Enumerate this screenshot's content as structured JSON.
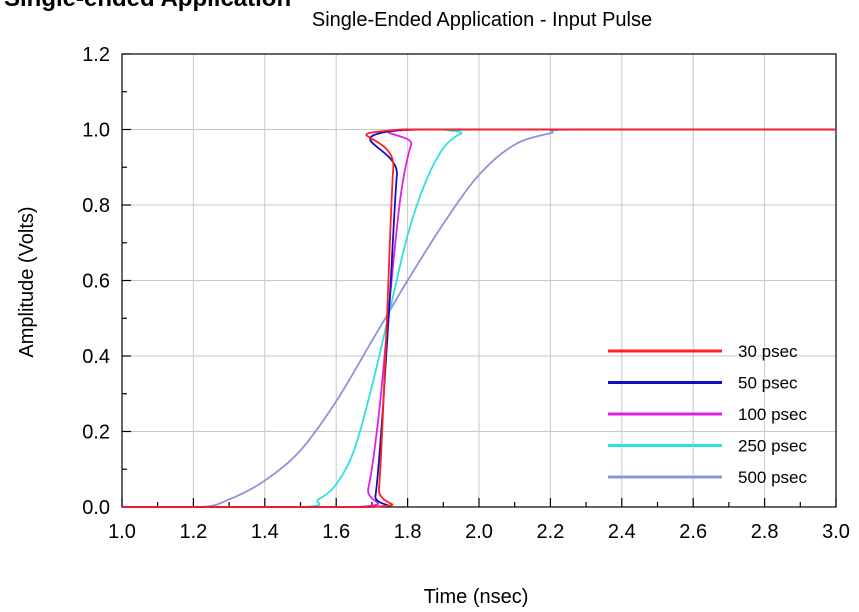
{
  "partial_heading": "Single-ended Application",
  "chart_data": {
    "type": "line",
    "title": "Single-Ended Application - Input Pulse",
    "xlabel": "Time (nsec)",
    "ylabel": "Amplitude (Volts)",
    "xlim": [
      1.0,
      3.0
    ],
    "ylim": [
      0.0,
      1.2
    ],
    "x_ticks": [
      "1.0",
      "1.2",
      "1.4",
      "1.6",
      "1.8",
      "2.0",
      "2.2",
      "2.4",
      "2.6",
      "2.8",
      "3.0"
    ],
    "y_ticks": [
      "0.0",
      "0.2",
      "0.4",
      "0.6",
      "0.8",
      "1.0",
      "1.2"
    ],
    "grid": true,
    "legend_position": "bottom-right",
    "series": [
      {
        "name": "30 psec",
        "color": "#ff2020",
        "x": [
          1.0,
          1.7,
          1.72,
          1.74,
          1.76,
          1.78,
          3.0
        ],
        "y": [
          0.0,
          0.0,
          0.05,
          0.45,
          0.9,
          1.0,
          1.0
        ]
      },
      {
        "name": "50 psec",
        "color": "#1010c0",
        "x": [
          1.0,
          1.69,
          1.71,
          1.73,
          1.75,
          1.77,
          1.79,
          3.0
        ],
        "y": [
          0.0,
          0.0,
          0.03,
          0.25,
          0.55,
          0.88,
          1.0,
          1.0
        ]
      },
      {
        "name": "100 psec",
        "color": "#e020e0",
        "x": [
          1.0,
          1.66,
          1.69,
          1.72,
          1.75,
          1.78,
          1.81,
          1.84,
          3.0
        ],
        "y": [
          0.0,
          0.0,
          0.05,
          0.25,
          0.55,
          0.82,
          0.96,
          1.0,
          1.0
        ]
      },
      {
        "name": "250 psec",
        "color": "#30e0e0",
        "x": [
          1.0,
          1.5,
          1.55,
          1.6,
          1.65,
          1.7,
          1.75,
          1.8,
          1.85,
          1.9,
          1.95,
          2.0,
          3.0
        ],
        "y": [
          0.0,
          0.0,
          0.02,
          0.06,
          0.15,
          0.32,
          0.52,
          0.72,
          0.86,
          0.95,
          0.99,
          1.0,
          1.0
        ]
      },
      {
        "name": "500 psec",
        "color": "#9090e0",
        "x": [
          1.0,
          1.22,
          1.3,
          1.4,
          1.5,
          1.6,
          1.7,
          1.75,
          1.8,
          1.9,
          2.0,
          2.1,
          2.2,
          2.28,
          3.0
        ],
        "y": [
          0.0,
          0.0,
          0.02,
          0.07,
          0.15,
          0.28,
          0.44,
          0.52,
          0.6,
          0.75,
          0.88,
          0.96,
          0.99,
          1.0,
          1.0
        ]
      }
    ]
  }
}
